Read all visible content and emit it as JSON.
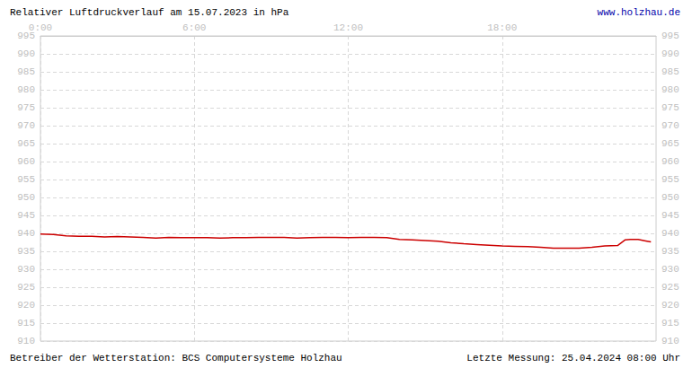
{
  "chart_data": {
    "type": "line",
    "title": "Relativer Luftdruckverlauf am 15.07.2023 in hPa",
    "annotations": [
      "www.holzhau.de",
      "Betreiber der Wetterstation: BCS Computersysteme Holzhau",
      "Letzte Messung: 25.04.2024 08:00 Uhr"
    ],
    "x": [
      0,
      0.5,
      1,
      1.5,
      2,
      2.5,
      3,
      3.5,
      4,
      4.5,
      5,
      5.5,
      6,
      6.5,
      7,
      7.5,
      8,
      8.5,
      9,
      9.5,
      10,
      10.5,
      11,
      11.5,
      12,
      12.5,
      13,
      13.5,
      14,
      14.5,
      15,
      15.5,
      16,
      16.5,
      17,
      17.5,
      18,
      18.5,
      19,
      19.5,
      20,
      20.5,
      21,
      21.5,
      22,
      22.5,
      22.8,
      23,
      23.3,
      23.6,
      23.8
    ],
    "values": [
      939.8,
      939.7,
      939.3,
      939.2,
      939.2,
      939.0,
      939.1,
      939.0,
      938.9,
      938.7,
      938.9,
      938.8,
      938.8,
      938.8,
      938.7,
      938.8,
      938.8,
      938.9,
      938.9,
      938.9,
      938.7,
      938.8,
      938.9,
      938.9,
      938.8,
      938.9,
      938.9,
      938.8,
      938.3,
      938.2,
      938.0,
      937.8,
      937.4,
      937.1,
      936.9,
      936.7,
      936.5,
      936.4,
      936.3,
      936.1,
      935.9,
      935.9,
      935.9,
      936.1,
      936.5,
      936.6,
      938.2,
      938.3,
      938.3,
      937.9,
      937.6
    ],
    "color": "#cc0000",
    "xlim": [
      0,
      24
    ],
    "xticks": [
      {
        "value": 0,
        "label": "0:00"
      },
      {
        "value": 6,
        "label": "6:00"
      },
      {
        "value": 12,
        "label": "12:00"
      },
      {
        "value": 18,
        "label": "18:00"
      }
    ],
    "ylim": [
      910,
      995
    ],
    "yticks": [
      910,
      915,
      920,
      925,
      930,
      935,
      940,
      945,
      950,
      955,
      960,
      965,
      970,
      975,
      980,
      985,
      990,
      995
    ],
    "grid": true
  }
}
